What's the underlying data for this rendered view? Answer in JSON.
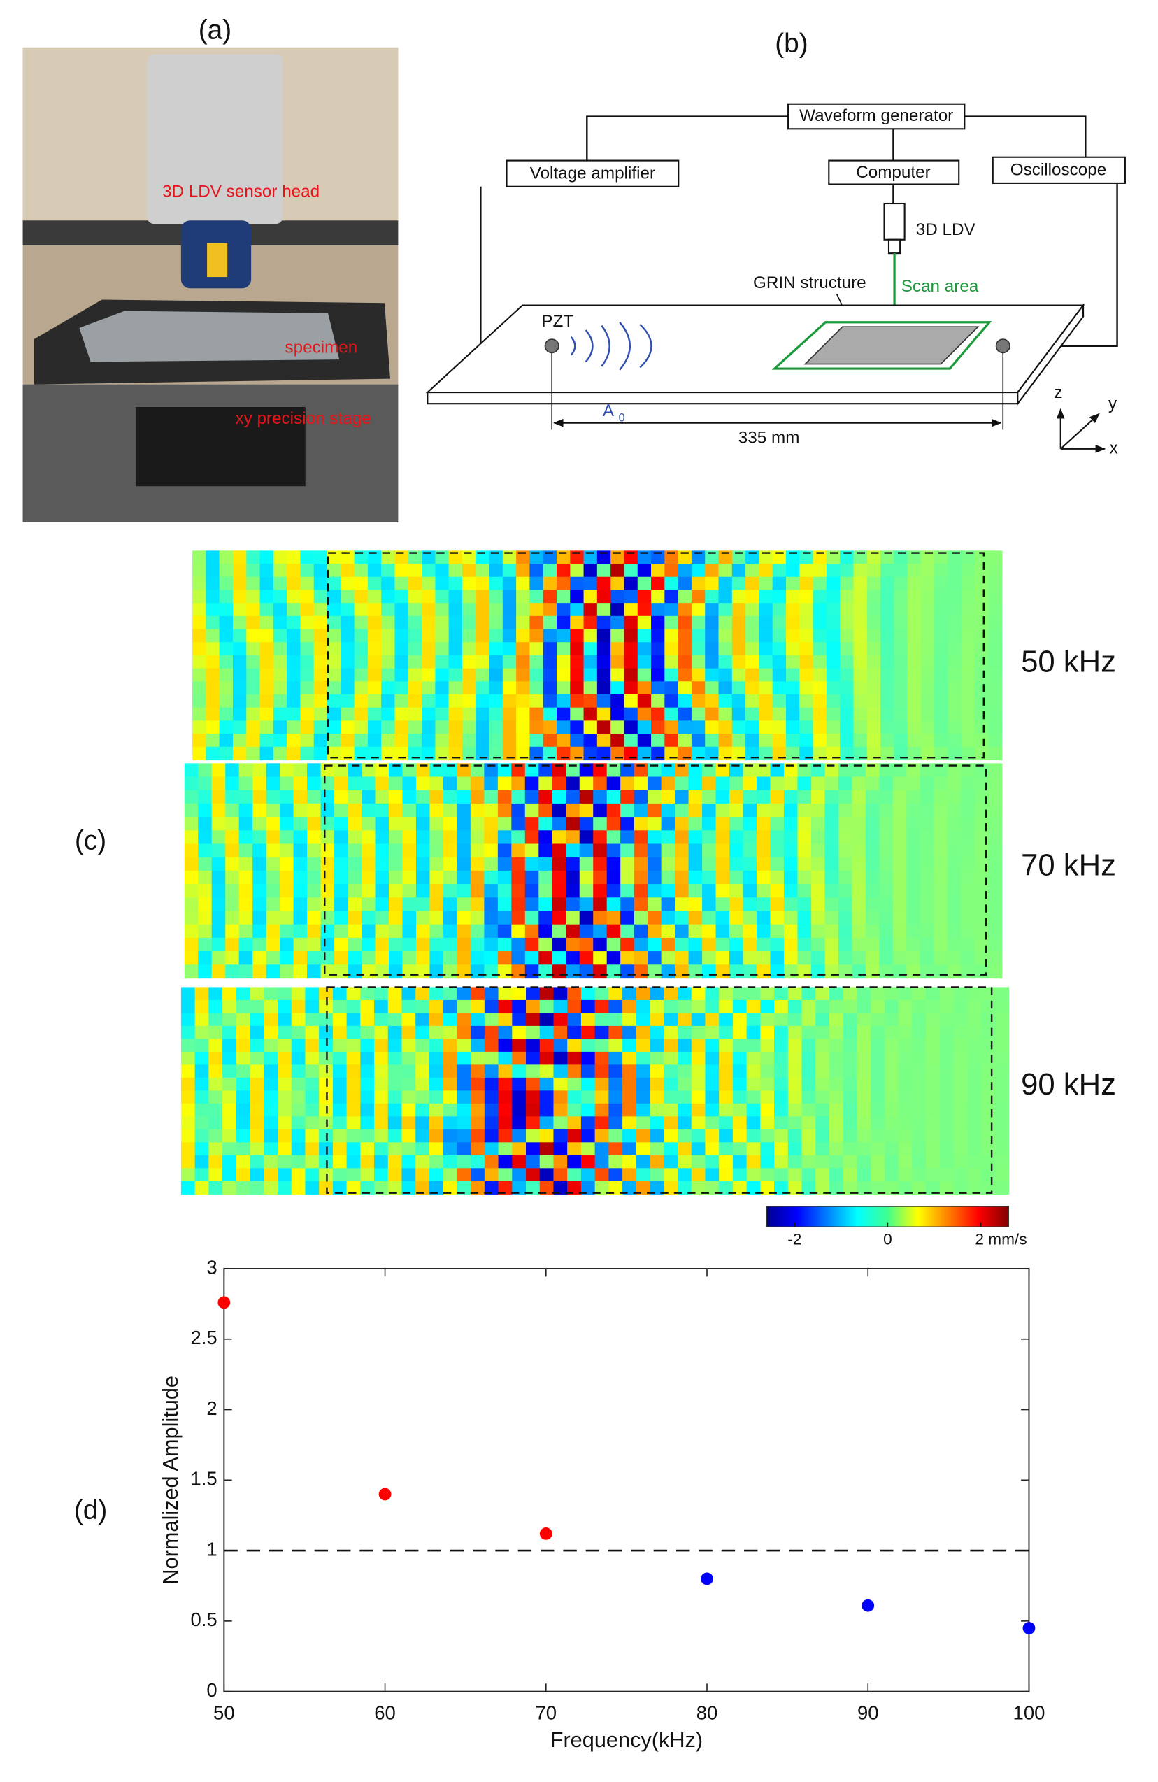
{
  "panel_labels": [
    "(a)",
    "(b)",
    "(c)",
    "(d)"
  ],
  "photo": {
    "labels": [
      "3D LDV sensor head",
      "specimen",
      "xy precision stage"
    ]
  },
  "diagram": {
    "boxes": [
      "Waveform generator",
      "Voltage amplifier",
      "Computer",
      "Oscilloscope"
    ],
    "sensor": "3D LDV",
    "structure": "GRIN structure",
    "scan": "Scan area",
    "source": "PZT",
    "wave": "A",
    "wave_sub": "0",
    "distance": "335 mm",
    "axes": [
      "z",
      "y",
      "x"
    ]
  },
  "heatmaps": {
    "frequencies": [
      "50 kHz",
      "70 kHz",
      "90 kHz"
    ],
    "colorbar": {
      "lim": [
        -2.6,
        2.6
      ],
      "ticks": [
        -2,
        0,
        {
          "value": 2,
          "label": "2 mm/s"
        }
      ]
    }
  },
  "chart_data": {
    "type": "scatter",
    "x": [
      50,
      60,
      70,
      80,
      90,
      100
    ],
    "values": [
      2.76,
      1.4,
      1.12,
      0.8,
      0.61,
      0.45
    ],
    "colors": [
      "#ff0000",
      "#ff0000",
      "#ff0000",
      "#0000ff",
      "#0000ff",
      "#0000ff"
    ],
    "xlabel": "Frequency(kHz)",
    "ylabel": "Normalized Amplitude",
    "xlim": [
      50,
      100
    ],
    "ylim": [
      0,
      3
    ],
    "xticks": [
      50,
      60,
      70,
      80,
      90,
      100
    ],
    "yticks": [
      0,
      0.5,
      1,
      1.5,
      2,
      2.5,
      3
    ],
    "reference_line": 1,
    "grid": false
  }
}
